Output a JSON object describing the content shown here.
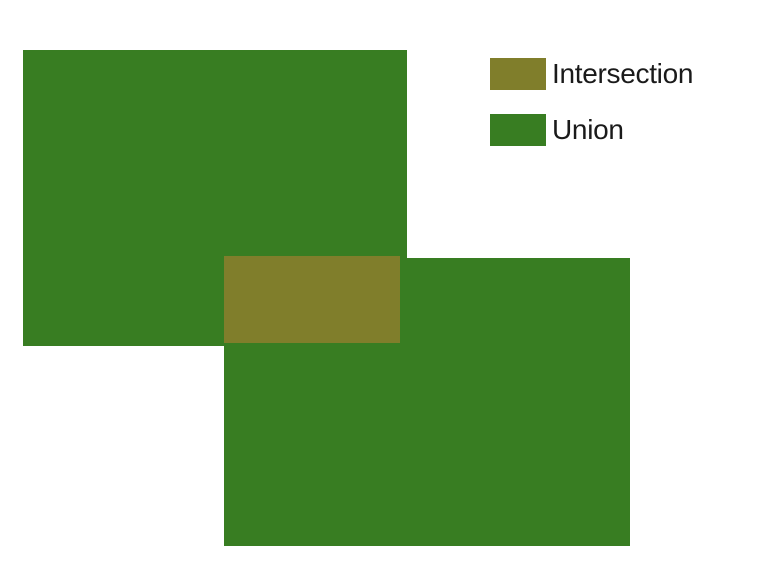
{
  "colors": {
    "union": "#387d22",
    "intersection": "#807e2b"
  },
  "legend": {
    "items": [
      {
        "label": "Intersection",
        "color_key": "intersection"
      },
      {
        "label": "Union",
        "color_key": "union"
      }
    ]
  }
}
